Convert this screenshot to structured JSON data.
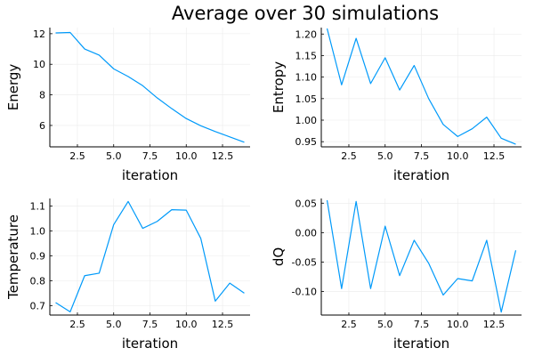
{
  "figure": {
    "title": "Average over 30 simulations"
  },
  "style": {
    "line_color": "#009AFA",
    "grid_color": "#EBEBEB",
    "axis_color": "#000000"
  },
  "chart_data": [
    {
      "type": "line",
      "xlabel": "iteration",
      "ylabel": "Energy",
      "xlim": [
        0.6,
        14.4
      ],
      "ylim": [
        4.6,
        12.4
      ],
      "xticks": [
        2.5,
        5.0,
        7.5,
        10.0,
        12.5
      ],
      "xtick_labels": [
        "2.5",
        "5.0",
        "7.5",
        "10.0",
        "12.5"
      ],
      "yticks": [
        6,
        8,
        10,
        12
      ],
      "ytick_labels": [
        "6",
        "8",
        "10",
        "12"
      ],
      "grid": true,
      "legend": "none",
      "x": [
        1,
        2,
        3,
        4,
        5,
        6,
        7,
        8,
        9,
        10,
        11,
        12,
        13,
        14
      ],
      "y": [
        12.05,
        12.08,
        11.0,
        10.6,
        9.7,
        9.2,
        8.6,
        7.8,
        7.1,
        6.45,
        5.98,
        5.6,
        5.25,
        4.9
      ]
    },
    {
      "type": "line",
      "xlabel": "iteration",
      "ylabel": "Entropy",
      "xlim": [
        0.6,
        14.4
      ],
      "ylim": [
        0.938,
        1.215
      ],
      "xticks": [
        2.5,
        5.0,
        7.5,
        10.0,
        12.5
      ],
      "xtick_labels": [
        "2.5",
        "5.0",
        "7.5",
        "10.0",
        "12.5"
      ],
      "yticks": [
        0.95,
        1.0,
        1.05,
        1.1,
        1.15,
        1.2
      ],
      "ytick_labels": [
        "0.95",
        "1.00",
        "1.05",
        "1.10",
        "1.15",
        "1.20"
      ],
      "grid": true,
      "legend": "none",
      "x": [
        1,
        2,
        3,
        4,
        5,
        6,
        7,
        8,
        9,
        10,
        11,
        12,
        13,
        14
      ],
      "y": [
        1.213,
        1.082,
        1.19,
        1.085,
        1.145,
        1.07,
        1.127,
        1.05,
        0.99,
        0.962,
        0.98,
        1.007,
        0.958,
        0.944
      ]
    },
    {
      "type": "line",
      "xlabel": "iteration",
      "ylabel": "Temperature",
      "xlim": [
        0.6,
        14.4
      ],
      "ylim": [
        0.662,
        1.13
      ],
      "xticks": [
        2.5,
        5.0,
        7.5,
        10.0,
        12.5
      ],
      "xtick_labels": [
        "2.5",
        "5.0",
        "7.5",
        "10.0",
        "12.5"
      ],
      "yticks": [
        0.7,
        0.8,
        0.9,
        1.0,
        1.1
      ],
      "ytick_labels": [
        "0.7",
        "0.8",
        "0.9",
        "1.0",
        "1.1"
      ],
      "grid": true,
      "legend": "none",
      "x": [
        1,
        2,
        3,
        4,
        5,
        6,
        7,
        8,
        9,
        10,
        11,
        12,
        13,
        14
      ],
      "y": [
        0.712,
        0.675,
        0.82,
        0.83,
        1.025,
        1.118,
        1.01,
        1.038,
        1.085,
        1.083,
        0.97,
        0.718,
        0.79,
        0.75
      ]
    },
    {
      "type": "line",
      "xlabel": "iteration",
      "ylabel": "dQ",
      "xlim": [
        0.6,
        14.4
      ],
      "ylim": [
        -0.14,
        0.058
      ],
      "xticks": [
        2.5,
        5.0,
        7.5,
        10.0,
        12.5
      ],
      "xtick_labels": [
        "2.5",
        "5.0",
        "7.5",
        "10.0",
        "12.5"
      ],
      "yticks": [
        0.05,
        0.0,
        -0.05,
        -0.1
      ],
      "ytick_labels": [
        "0.05",
        "0.00",
        "-0.05",
        "-0.10"
      ],
      "grid": true,
      "legend": "none",
      "x": [
        1,
        2,
        3,
        4,
        5,
        6,
        7,
        8,
        9,
        10,
        11,
        12,
        13,
        14
      ],
      "y": [
        0.055,
        -0.095,
        0.053,
        -0.095,
        0.011,
        -0.073,
        -0.013,
        -0.052,
        -0.106,
        -0.078,
        -0.082,
        -0.013,
        -0.135,
        -0.03
      ]
    }
  ]
}
